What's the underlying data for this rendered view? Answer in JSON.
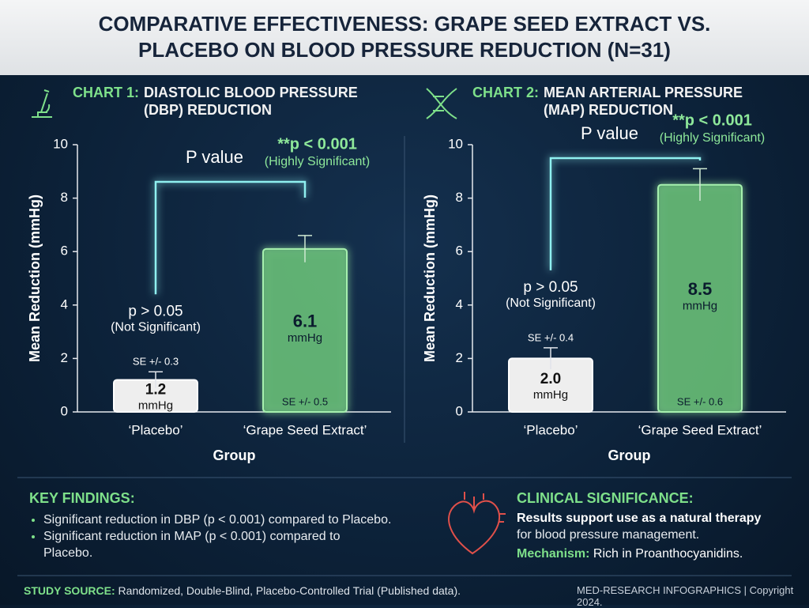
{
  "header": {
    "title": "COMPARATIVE EFFECTIVENESS: GRAPE SEED EXTRACT VS. PLACEBO ON BLOOD PRESSURE REDUCTION (N=31)"
  },
  "chart_data": [
    {
      "type": "bar",
      "title_prefix": "CHART 1:",
      "title": "DIASTOLIC BLOOD PRESSURE (DBP) REDUCTION",
      "x_label": "Group",
      "y_label": "Mean Reduction (mmHg)",
      "categories": [
        "‘Placebo’",
        "‘Grape Seed Extract’"
      ],
      "values": [
        1.2,
        6.1
      ],
      "value_unit": "mmHg",
      "errors": [
        0.3,
        0.5
      ],
      "error_labels": [
        "SE +/- 0.3",
        "SE +/- 0.5"
      ],
      "colors": [
        "#eeeeee",
        "#74d480"
      ],
      "ylim": [
        0,
        10
      ],
      "yticks": [
        0,
        2,
        4,
        6,
        8,
        10
      ],
      "annotations": {
        "ns_p": "p > 0.05",
        "ns_label": "(Not Significant)",
        "sig_heading": "P value",
        "sig_p": "**p < 0.001",
        "sig_label": "(Highly Significant)"
      }
    },
    {
      "type": "bar",
      "title_prefix": "CHART 2:",
      "title": "MEAN ARTERIAL PRESSURE (MAP) REDUCTION",
      "x_label": "Group",
      "y_label": "Mean Reduction (mmHg)",
      "categories": [
        "‘Placebo’",
        "‘Grape Seed Extract’"
      ],
      "values": [
        2,
        8.5
      ],
      "value_labels": [
        "2.0",
        "8.5"
      ],
      "value_unit": "mmHg",
      "errors": [
        0.4,
        0.6
      ],
      "error_labels": [
        "SE +/- 0.4",
        "SE +/- 0.6"
      ],
      "colors": [
        "#eeeeee",
        "#74d480"
      ],
      "ylim": [
        0,
        10
      ],
      "yticks": [
        0,
        2,
        4,
        6,
        8,
        10
      ],
      "annotations": {
        "ns_p": "p > 0.05",
        "ns_label": "(Not Significant)",
        "sig_heading": "P value",
        "sig_p": "**p < 0.001",
        "sig_label": "(Highly Significant)"
      }
    }
  ],
  "key_findings": {
    "heading": "KEY FINDINGS:",
    "items": [
      "Significant reduction in DBP (p < 0.001) compared to Placebo.",
      "Significant reduction in MAP (p < 0.001) compared to Placebo."
    ]
  },
  "clinical_significance": {
    "heading": "CLINICAL SIGNIFICANCE:",
    "text": "Results support use as a natural therapy",
    "text2": "for blood pressure management.",
    "mechanism_label": "Mechanism:",
    "mechanism": "Rich in Proanthocyanidins."
  },
  "footer": {
    "source_label": "STUDY SOURCE:",
    "source": "Randomized, Double-Blind, Placebo-Controlled Trial (Published data).",
    "credit": "MED-RESEARCH INFOGRAPHICS | Copyright 2024."
  }
}
